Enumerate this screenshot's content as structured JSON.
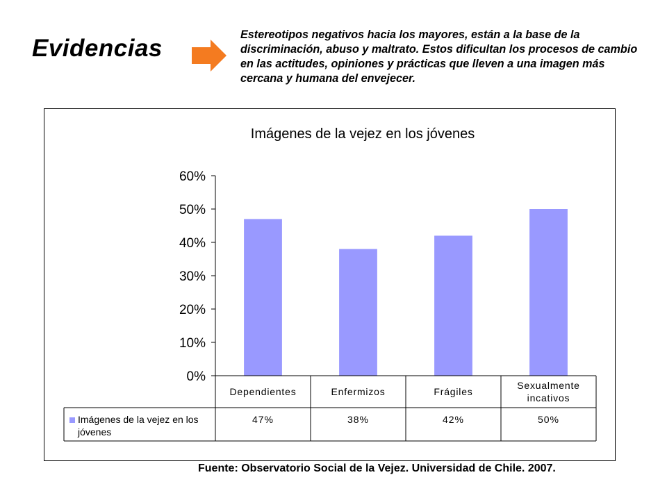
{
  "slide": {
    "title": "Evidencias",
    "description": "Estereotipos negativos hacia los mayores, están a la base de la discriminación, abuso y maltrato. Estos dificultan los procesos de cambio en las actitudes, opiniones y prácticas que lleven a una imagen más cercana y humana del envejecer.",
    "source": "Fuente: Observatorio Social de la Vejez. Universidad de Chile. 2007.",
    "arrow_color": "#f47b20"
  },
  "chart_data": {
    "type": "bar",
    "title": "Imágenes de la vejez en los jóvenes",
    "categories": [
      "Dependientes",
      "Enfermizos",
      "Frágiles",
      "Sexualmente incativos"
    ],
    "category_lines": [
      [
        "Dependientes"
      ],
      [
        "Enfermizos"
      ],
      [
        "Frágiles"
      ],
      [
        "Sexualmente",
        "incativos"
      ]
    ],
    "series": [
      {
        "name": "Imágenes de la vejez en los jóvenes",
        "name_lines": [
          "Imágenes de la vejez en los",
          "jóvenes"
        ],
        "values": [
          0.47,
          0.38,
          0.42,
          0.5
        ],
        "labels": [
          "47%",
          "38%",
          "42%",
          "50%"
        ],
        "color": "#9999ff"
      }
    ],
    "ylim": [
      0,
      0.6
    ],
    "yticks": [
      0,
      0.1,
      0.2,
      0.3,
      0.4,
      0.5,
      0.6
    ],
    "ytick_labels": [
      "0%",
      "10%",
      "20%",
      "30%",
      "40%",
      "50%",
      "60%"
    ],
    "legend": "data-table",
    "grid": false
  }
}
